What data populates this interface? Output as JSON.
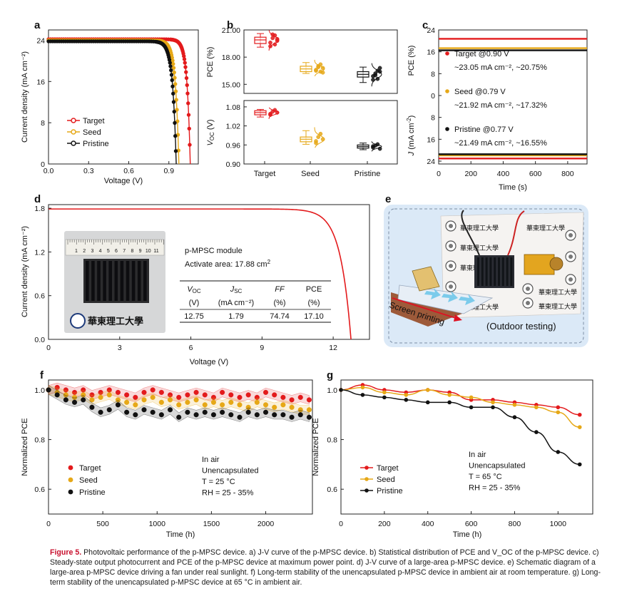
{
  "colors": {
    "target": "#e31a1c",
    "seed": "#e6a817",
    "pristine": "#111111",
    "frame": "#222222"
  },
  "panels": {
    "a": {
      "letter": "a",
      "xlabel": "Voltage (V)",
      "ylabel": "Current density (mA cm⁻²)",
      "xticks": [
        "0.0",
        "0.3",
        "0.6",
        "0.9"
      ],
      "yticks": [
        "0",
        "8",
        "16",
        "24"
      ],
      "legend": [
        "Target",
        "Seed",
        "Pristine"
      ]
    },
    "b": {
      "letter": "b",
      "ylabel_top": "PCE (%)",
      "ylabel_bottom": "V_OC (V)",
      "yticks_top": [
        "15.00",
        "18.00",
        "21.00"
      ],
      "yticks_bottom": [
        "0.90",
        "0.96",
        "1.02",
        "1.08"
      ],
      "categories": [
        "Target",
        "Seed",
        "Pristine"
      ]
    },
    "c": {
      "letter": "c",
      "xlabel": "Time (s)",
      "ylabel_top": "PCE (%)",
      "ylabel_bottom": "J (mA cm⁻²)",
      "xticks": [
        "0",
        "200",
        "400",
        "600",
        "800"
      ],
      "yticks": [
        "24",
        "16",
        "8",
        "0",
        "8",
        "16",
        "24"
      ],
      "entries": [
        {
          "line1": "Target @0.90 V",
          "line2": "~23.05 mA cm⁻², ~20.75%"
        },
        {
          "line1": "Seed @0.79 V",
          "line2": "~21.92 mA cm⁻², ~17.32%"
        },
        {
          "line1": "Pristine @0.77 V",
          "line2": "~21.49 mA cm⁻², ~16.55%"
        }
      ]
    },
    "d": {
      "letter": "d",
      "xlabel": "Voltage (V)",
      "ylabel": "Current density (mA cm⁻²)",
      "xticks": [
        "0",
        "3",
        "6",
        "9",
        "12"
      ],
      "yticks": [
        "0.0",
        "0.6",
        "1.2",
        "1.8"
      ],
      "module_title": "p-MPSC module",
      "area_label": "Activate area: 17.88 cm²",
      "table_headers": [
        "V_OC",
        "J_SC",
        "FF",
        "PCE"
      ],
      "table_units": [
        "(V)",
        "(mA cm⁻²)",
        "(%)",
        "(%)"
      ],
      "table_values": [
        "12.75",
        "1.79",
        "74.74",
        "17.10"
      ],
      "ruler_numbers": [
        "1",
        "2",
        "3",
        "4",
        "5",
        "6",
        "7",
        "8",
        "9",
        "10",
        "11"
      ],
      "school_text": "華東理工大學"
    },
    "e": {
      "letter": "e",
      "screen_printing": "Screen printing",
      "outdoor": "(Outdoor testing)",
      "paper_text": "華東理工大學"
    },
    "f": {
      "letter": "f",
      "xlabel": "Time (h)",
      "ylabel": "Normalized PCE",
      "xticks": [
        "0",
        "500",
        "1000",
        "1500",
        "2000"
      ],
      "yticks": [
        "0.6",
        "0.8",
        "1.0"
      ],
      "legend": [
        "Target",
        "Seed",
        "Pristine"
      ],
      "conditions": [
        "In air",
        "Unencapsulated",
        "T = 25 °C",
        "RH = 25 - 35%"
      ]
    },
    "g": {
      "letter": "g",
      "xlabel": "Time (h)",
      "ylabel": "Normalized PCE",
      "xticks": [
        "0",
        "200",
        "400",
        "600",
        "800",
        "1000"
      ],
      "yticks": [
        "0.6",
        "0.8",
        "1.0"
      ],
      "legend": [
        "Target",
        "Seed",
        "Pristine"
      ],
      "conditions": [
        "In air",
        "Unencapsulated",
        "T = 65 °C",
        "RH = 25 - 35%"
      ]
    }
  },
  "caption": {
    "label": "Figure 5.",
    "text": "Photovoltaic performance of the p-MPSC device. a) J-V curve of the p-MPSC device. b) Statistical distribution of PCE and V_OC of the p-MPSC device. c) Steady-state output photocurrent and PCE of the p-MPSC device at maximum power point. d) J-V curve of a large-area p-MPSC device. e) Schematic diagram of a large-area p-MPSC device driving a fan under real sunlight. f) Long-term stability of the unencapsulated p-MPSC device in ambient air at room temperature. g) Long-term stability of the unencapsulated p-MPSC device at 65 °C in ambient air."
  },
  "chart_data": [
    {
      "id": "a",
      "type": "line",
      "xlim": [
        0,
        1.12
      ],
      "ylim": [
        0,
        26
      ],
      "series": [
        {
          "name": "Target",
          "jsc": 24.2,
          "voc": 1.06,
          "n": 0.024
        },
        {
          "name": "Seed",
          "jsc": 24.0,
          "voc": 0.975,
          "n": 0.026
        },
        {
          "name": "Pristine",
          "jsc": 23.8,
          "voc": 0.955,
          "n": 0.027
        }
      ]
    },
    {
      "id": "b_pce",
      "type": "scatter",
      "ylim": [
        14,
        21
      ],
      "categories": [
        "Target",
        "Seed",
        "Pristine"
      ],
      "box": [
        {
          "q1": 19.5,
          "q3": 20.2,
          "med": 19.9,
          "min": 19.1,
          "max": 20.6
        },
        {
          "q1": 16.4,
          "q3": 17.0,
          "med": 16.7,
          "min": 16.2,
          "max": 17.4
        },
        {
          "q1": 15.8,
          "q3": 16.4,
          "med": 16.1,
          "min": 15.2,
          "max": 16.9
        }
      ],
      "points": [
        [
          19.6,
          20.1,
          20.4,
          19.8,
          19.2,
          20.5,
          19.4,
          20.0
        ],
        [
          16.5,
          16.9,
          17.2,
          16.3,
          16.6,
          17.0,
          16.4,
          16.8
        ],
        [
          15.5,
          16.0,
          16.5,
          16.8,
          15.9,
          16.2,
          15.6,
          16.4
        ]
      ]
    },
    {
      "id": "b_voc",
      "type": "scatter",
      "ylim": [
        0.9,
        1.1
      ],
      "categories": [
        "Target",
        "Seed",
        "Pristine"
      ],
      "box": [
        {
          "q1": 1.055,
          "q3": 1.068,
          "med": 1.062,
          "min": 1.048,
          "max": 1.072
        },
        {
          "q1": 0.97,
          "q3": 0.985,
          "med": 0.978,
          "min": 0.962,
          "max": 1.005
        },
        {
          "q1": 0.95,
          "q3": 0.96,
          "med": 0.955,
          "min": 0.945,
          "max": 0.966
        }
      ],
      "points": [
        [
          1.058,
          1.065,
          1.07,
          1.062,
          1.055
        ],
        [
          0.972,
          0.985,
          0.995,
          0.978,
          0.966
        ],
        [
          0.952,
          0.958,
          0.962,
          0.948,
          0.956
        ]
      ]
    },
    {
      "id": "c",
      "type": "line",
      "xlim": [
        0,
        920
      ],
      "pce": [
        {
          "name": "Target",
          "value": 20.75
        },
        {
          "name": "Seed",
          "value": 17.32
        },
        {
          "name": "Pristine",
          "value": 16.55
        }
      ],
      "j": [
        {
          "name": "Target",
          "value": 23.05
        },
        {
          "name": "Seed",
          "value": 21.92
        },
        {
          "name": "Pristine",
          "value": 21.49
        }
      ]
    },
    {
      "id": "d",
      "type": "line",
      "xlim": [
        0,
        14
      ],
      "ylim": [
        0,
        1.85
      ],
      "series": [
        {
          "name": "p-MPSC module",
          "jsc": 1.79,
          "voc": 12.75,
          "n": 0.45
        }
      ]
    },
    {
      "id": "f",
      "type": "scatter",
      "xlim": [
        0,
        2400
      ],
      "ylim": [
        0.5,
        1.04
      ],
      "series": [
        {
          "name": "Target",
          "x": [
            0,
            80,
            160,
            240,
            320,
            400,
            480,
            560,
            640,
            720,
            800,
            880,
            960,
            1040,
            1120,
            1200,
            1280,
            1360,
            1440,
            1520,
            1600,
            1680,
            1760,
            1840,
            1920,
            2000,
            2080,
            2160,
            2240,
            2320,
            2400
          ],
          "y": [
            1.0,
            1.01,
            1.0,
            0.99,
            1.0,
            0.98,
            0.99,
            1.0,
            0.99,
            0.98,
            0.97,
            0.99,
            1.0,
            0.99,
            0.98,
            0.97,
            0.98,
            0.99,
            0.98,
            0.97,
            0.99,
            0.98,
            0.97,
            0.98,
            0.97,
            0.99,
            0.98,
            0.97,
            0.96,
            0.97,
            0.96
          ]
        },
        {
          "name": "Seed",
          "x": [
            0,
            80,
            160,
            240,
            320,
            400,
            480,
            560,
            640,
            720,
            800,
            880,
            960,
            1040,
            1120,
            1200,
            1280,
            1360,
            1440,
            1520,
            1600,
            1680,
            1760,
            1840,
            1920,
            2000,
            2080,
            2160,
            2240,
            2320,
            2400
          ],
          "y": [
            1.0,
            0.99,
            0.98,
            0.97,
            0.98,
            0.96,
            0.97,
            0.98,
            0.96,
            0.95,
            0.94,
            0.96,
            0.97,
            0.95,
            0.96,
            0.94,
            0.95,
            0.96,
            0.94,
            0.95,
            0.94,
            0.95,
            0.94,
            0.93,
            0.95,
            0.94,
            0.93,
            0.94,
            0.93,
            0.92,
            0.92
          ]
        },
        {
          "name": "Pristine",
          "x": [
            0,
            80,
            160,
            240,
            320,
            400,
            480,
            560,
            640,
            720,
            800,
            880,
            960,
            1040,
            1120,
            1200,
            1280,
            1360,
            1440,
            1520,
            1600,
            1680,
            1760,
            1840,
            1920,
            2000,
            2080,
            2160,
            2240,
            2320,
            2400
          ],
          "y": [
            1.0,
            0.98,
            0.96,
            0.95,
            0.96,
            0.93,
            0.91,
            0.92,
            0.94,
            0.91,
            0.9,
            0.92,
            0.91,
            0.9,
            0.92,
            0.89,
            0.91,
            0.9,
            0.91,
            0.9,
            0.91,
            0.9,
            0.89,
            0.91,
            0.9,
            0.91,
            0.9,
            0.9,
            0.89,
            0.9,
            0.89
          ]
        }
      ]
    },
    {
      "id": "g",
      "type": "line",
      "xlim": [
        0,
        1150
      ],
      "ylim": [
        0.5,
        1.04
      ],
      "series": [
        {
          "name": "Target",
          "x": [
            0,
            100,
            200,
            300,
            400,
            500,
            600,
            700,
            800,
            900,
            1000,
            1100
          ],
          "y": [
            1.0,
            1.02,
            1.0,
            0.99,
            1.0,
            0.99,
            0.96,
            0.96,
            0.95,
            0.94,
            0.93,
            0.9
          ]
        },
        {
          "name": "Seed",
          "x": [
            0,
            100,
            200,
            300,
            400,
            500,
            600,
            700,
            800,
            900,
            1000,
            1100
          ],
          "y": [
            1.0,
            1.01,
            0.99,
            0.98,
            1.0,
            0.98,
            0.97,
            0.95,
            0.94,
            0.93,
            0.91,
            0.85
          ]
        },
        {
          "name": "Pristine",
          "x": [
            0,
            100,
            200,
            300,
            400,
            500,
            600,
            700,
            800,
            900,
            1000,
            1100
          ],
          "y": [
            1.0,
            0.98,
            0.97,
            0.96,
            0.95,
            0.95,
            0.93,
            0.93,
            0.89,
            0.83,
            0.75,
            0.7
          ]
        }
      ]
    }
  ]
}
